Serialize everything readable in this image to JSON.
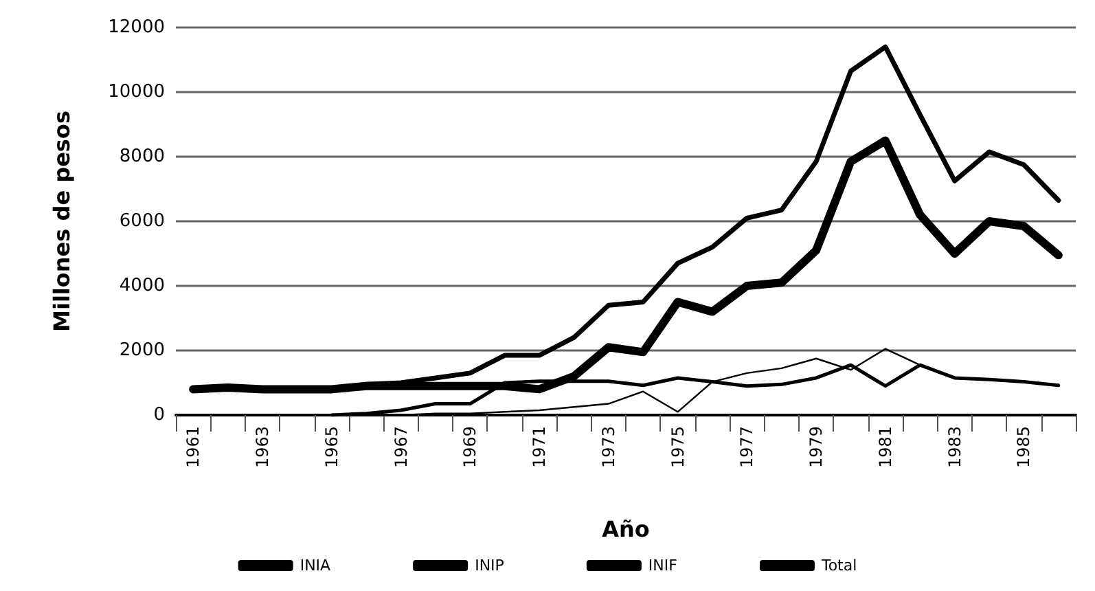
{
  "chart_data": {
    "type": "line",
    "xlabel": "Año",
    "ylabel": "Millones de pesos",
    "categories": [
      "1961",
      null,
      "1963",
      null,
      "1965",
      null,
      "1967",
      null,
      "1969",
      null,
      "1971",
      null,
      "1973",
      null,
      "1975",
      null,
      "1977",
      null,
      "1979",
      null,
      "1981",
      null,
      "1983",
      null,
      "1985",
      null
    ],
    "series": [
      {
        "name": "INIA",
        "color": "#000000",
        "values": [
          800,
          850,
          800,
          800,
          800,
          900,
          900,
          900,
          900,
          900,
          800,
          1200,
          2100,
          1950,
          3500,
          3200,
          4000,
          4100,
          5100,
          7850,
          8500,
          6200,
          5000,
          6000,
          5850,
          4950
        ]
      },
      {
        "name": "INIP",
        "color": "#000000",
        "values": [
          null,
          null,
          null,
          null,
          0,
          50,
          150,
          350,
          350,
          1000,
          1050,
          1050,
          1050,
          920,
          1150,
          1030,
          900,
          950,
          1150,
          1550,
          900,
          1550,
          1150,
          1100,
          1030,
          920
        ]
      },
      {
        "name": "INIF",
        "color": "#000000",
        "values": [
          null,
          null,
          null,
          null,
          0,
          0,
          0,
          50,
          50,
          100,
          150,
          250,
          350,
          730,
          100,
          1030,
          1300,
          1450,
          1750,
          1400,
          2050,
          1550,
          1150,
          1100,
          1030,
          920
        ]
      },
      {
        "name": "Total",
        "color": "#000000",
        "values": [
          800,
          850,
          800,
          800,
          800,
          950,
          1000,
          1150,
          1300,
          1850,
          1850,
          2400,
          3400,
          3500,
          4700,
          5200,
          6100,
          6350,
          7850,
          10650,
          11400,
          9300,
          7250,
          8150,
          7750,
          6650
        ]
      }
    ],
    "ylim": [
      0,
      12000
    ],
    "yticks": [
      0,
      2000,
      4000,
      6000,
      8000,
      10000,
      12000
    ],
    "grid": "y",
    "legend": "bottom",
    "marker": "none",
    "line_style": "solid"
  }
}
